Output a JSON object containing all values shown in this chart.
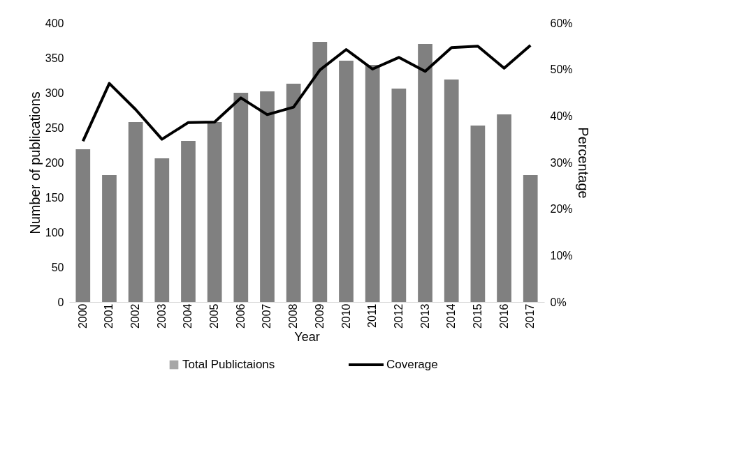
{
  "chart_data": {
    "type": "bar",
    "categories": [
      "2000",
      "2001",
      "2002",
      "2003",
      "2004",
      "2005",
      "2006",
      "2007",
      "2008",
      "2009",
      "2010",
      "2011",
      "2012",
      "2013",
      "2014",
      "2015",
      "2016",
      "2017"
    ],
    "series": [
      {
        "name": "Total Publictaions",
        "color": "#808080",
        "values": [
          219,
          182,
          258,
          206,
          231,
          258,
          300,
          302,
          313,
          373,
          346,
          340,
          306,
          370,
          319,
          253,
          269,
          182
        ]
      },
      {
        "name": "Coverage",
        "type": "line",
        "axis": "y2",
        "color": "#000000",
        "values": [
          34.6,
          47,
          41.4,
          35,
          38.6,
          38.7,
          43.9,
          40.3,
          41.9,
          49.9,
          54.3,
          50.1,
          52.6,
          49.6,
          54.7,
          55,
          50.3,
          55.2
        ]
      }
    ],
    "xlabel": "Year",
    "ylabel": "Number of publications",
    "y2label": "Percentage",
    "ylim": [
      0,
      400
    ],
    "yticks": [
      0,
      50,
      100,
      150,
      200,
      250,
      300,
      350,
      400
    ],
    "y2lim": [
      0,
      60
    ],
    "y2ticks": [
      {
        "value": 0,
        "label": "0%"
      },
      {
        "value": 10,
        "label": "10%"
      },
      {
        "value": 20,
        "label": "20%"
      },
      {
        "value": 30,
        "label": "30%"
      },
      {
        "value": 40,
        "label": "40%"
      },
      {
        "value": 50,
        "label": "50%"
      },
      {
        "value": 60,
        "label": "60%"
      }
    ],
    "grid": false,
    "legend": "bottom",
    "marker": "none",
    "line_style": "solid"
  }
}
